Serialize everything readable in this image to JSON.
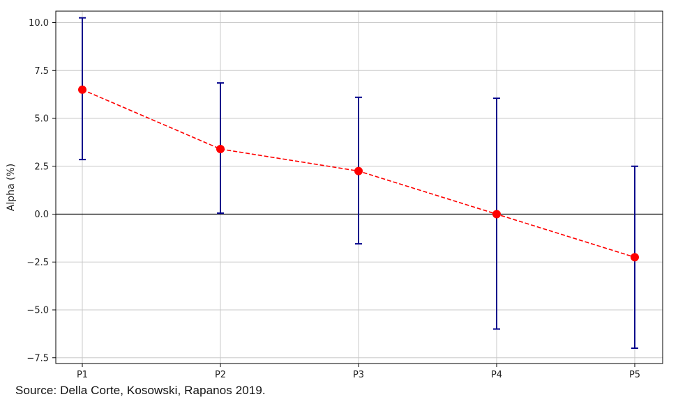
{
  "chart_data": {
    "type": "line",
    "categories": [
      "P1",
      "P2",
      "P3",
      "P4",
      "P5"
    ],
    "series": [
      {
        "values": [
          6.5,
          3.4,
          2.25,
          0.0,
          -2.25
        ],
        "error_low": [
          2.85,
          0.05,
          -1.55,
          -6.0,
          -7.0
        ],
        "error_high": [
          10.25,
          6.85,
          6.1,
          6.05,
          2.5
        ],
        "color": "#ff0000",
        "line_style": "dashed",
        "marker": "circle",
        "error_color": "#00008b"
      }
    ],
    "ylabel": "Alpha (%)",
    "xlabel": "",
    "title": "",
    "ylim": [
      -7.8,
      10.6
    ],
    "yticks": [
      -7.5,
      -5.0,
      -2.5,
      0.0,
      2.5,
      5.0,
      7.5,
      10.0
    ],
    "ytick_labels": [
      "−7.5",
      "−5.0",
      "−2.5",
      "0.0",
      "2.5",
      "5.0",
      "7.5",
      "10.0"
    ],
    "zero_line": true,
    "zero_line_color": "#000000",
    "grid": true,
    "grid_color": "#c8c8c8",
    "legend": "none"
  },
  "footer": {
    "source": "Source: Della Corte, Kosowski, Rapanos 2019."
  }
}
